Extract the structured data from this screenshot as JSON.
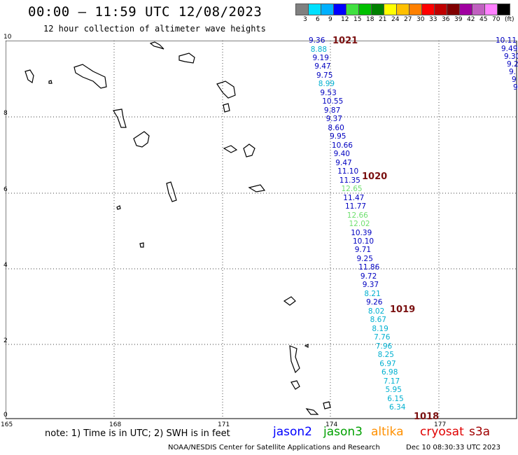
{
  "header": {
    "title": "00:00 – 11:59 UTC 12/08/2023",
    "subtitle": "12 hour collection of altimeter wave heights"
  },
  "scale": {
    "colors": [
      "#808080",
      "#00e0ff",
      "#00b0ff",
      "#0000ff",
      "#40e040",
      "#00c000",
      "#008000",
      "#ffff00",
      "#ffc000",
      "#ff8000",
      "#ff0000",
      "#c00000",
      "#800000",
      "#a000a0",
      "#c060c0",
      "#ff80ff",
      "#000000"
    ],
    "labels": [
      "3",
      "6",
      "9",
      "12",
      "15",
      "18",
      "21",
      "24",
      "27",
      "30",
      "33",
      "36",
      "39",
      "42",
      "45",
      "70",
      "(ft)"
    ]
  },
  "axes": {
    "x_ticks": [
      "165",
      "168",
      "171",
      "174",
      "177"
    ],
    "y_ticks": [
      "0",
      "2",
      "4",
      "6",
      "8",
      "10"
    ]
  },
  "wave_heights": [
    {
      "v": "9.36",
      "c": "#0000c0"
    },
    {
      "v": "8.88",
      "c": "#00b0d0"
    },
    {
      "v": "9.19",
      "c": "#0000c0"
    },
    {
      "v": "9.47",
      "c": "#0000c0"
    },
    {
      "v": "9.75",
      "c": "#0000c0"
    },
    {
      "v": "8.99",
      "c": "#00b0d0"
    },
    {
      "v": "9.53",
      "c": "#0000c0"
    },
    {
      "v": "10.55",
      "c": "#0000c0"
    },
    {
      "v": "9.87",
      "c": "#0000c0"
    },
    {
      "v": "9.37",
      "c": "#0000c0"
    },
    {
      "v": "8.60",
      "c": "#0000c0"
    },
    {
      "v": "9.95",
      "c": "#0000c0"
    },
    {
      "v": "10.66",
      "c": "#0000c0"
    },
    {
      "v": "9.40",
      "c": "#0000c0"
    },
    {
      "v": "9.47",
      "c": "#0000c0"
    },
    {
      "v": "11.10",
      "c": "#0000c0"
    },
    {
      "v": "11.35",
      "c": "#0000c0"
    },
    {
      "v": "12.65",
      "c": "#70e070"
    },
    {
      "v": "11.47",
      "c": "#0000c0"
    },
    {
      "v": "11.77",
      "c": "#0000c0"
    },
    {
      "v": "12.66",
      "c": "#70e070"
    },
    {
      "v": "12.02",
      "c": "#70e070"
    },
    {
      "v": "10.39",
      "c": "#0000c0"
    },
    {
      "v": "10.10",
      "c": "#0000c0"
    },
    {
      "v": "9.71",
      "c": "#0000c0"
    },
    {
      "v": "9.25",
      "c": "#0000c0"
    },
    {
      "v": "11.86",
      "c": "#0000c0"
    },
    {
      "v": "9.72",
      "c": "#0000c0"
    },
    {
      "v": "9.37",
      "c": "#0000c0"
    },
    {
      "v": "8.21",
      "c": "#00b0d0"
    },
    {
      "v": "9.26",
      "c": "#0000c0"
    },
    {
      "v": "8.02",
      "c": "#00b0d0"
    },
    {
      "v": "8.67",
      "c": "#00b0d0"
    },
    {
      "v": "8.19",
      "c": "#00b0d0"
    },
    {
      "v": "7.76",
      "c": "#00b0d0"
    },
    {
      "v": "7.96",
      "c": "#00b0d0"
    },
    {
      "v": "8.25",
      "c": "#00b0d0"
    },
    {
      "v": "6.97",
      "c": "#00b0d0"
    },
    {
      "v": "6.98",
      "c": "#00b0d0"
    },
    {
      "v": "7.17",
      "c": "#00b0d0"
    },
    {
      "v": "5.95",
      "c": "#00b0d0"
    },
    {
      "v": "6.15",
      "c": "#00b0d0"
    },
    {
      "v": "6.34",
      "c": "#00b0d0"
    }
  ],
  "cycle_labels": [
    "1021",
    "1020",
    "1019",
    "1018"
  ],
  "edge_values": [
    "10.11",
    "9.49",
    "9.30",
    "9.2",
    "9.",
    "9",
    "9"
  ],
  "footer": {
    "note": "note:  1) Time is in UTC;  2) SWH is in feet",
    "satellites": [
      {
        "name": "jason2",
        "color": "#0000ff"
      },
      {
        "name": "jason3",
        "color": "#00a000"
      },
      {
        "name": "altika",
        "color": "#ff9000"
      },
      {
        "name": "cryosat",
        "color": "#e00000"
      },
      {
        "name": "s3a",
        "color": "#a00000"
      }
    ],
    "credit": "NOAA/NESDIS Center for Satellite Applications and Research",
    "timestamp": "Dec 10 08:30:33 UTC 2023"
  }
}
